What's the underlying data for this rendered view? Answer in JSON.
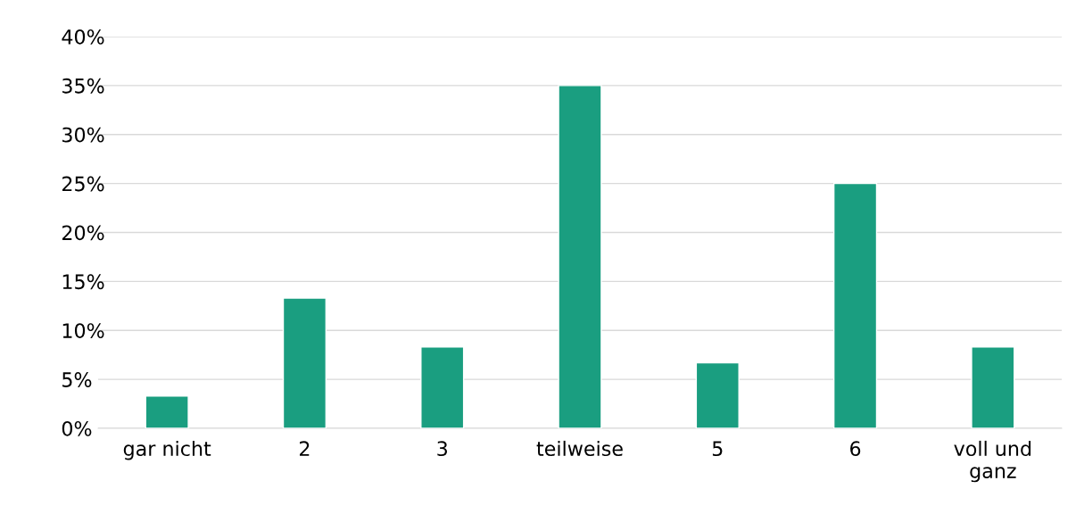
{
  "chart_data": {
    "type": "bar",
    "categories": [
      "gar nicht",
      "2",
      "3",
      "teilweise",
      "5",
      "6",
      "voll und\nganz"
    ],
    "values": [
      3.3,
      13.3,
      8.3,
      35,
      6.7,
      25,
      8.3
    ],
    "color": "#1a9e80",
    "ylim": [
      0,
      40
    ],
    "yticks": [
      {
        "value": 0,
        "label": "0%"
      },
      {
        "value": 5,
        "label": "5%"
      },
      {
        "value": 10,
        "label": "10%"
      },
      {
        "value": 15,
        "label": "15%"
      },
      {
        "value": 20,
        "label": "20%"
      },
      {
        "value": 25,
        "label": "25%"
      },
      {
        "value": 30,
        "label": "30%"
      },
      {
        "value": 35,
        "label": "35%"
      },
      {
        "value": 40,
        "label": "40%"
      }
    ],
    "grid": "y",
    "legend": false
  }
}
